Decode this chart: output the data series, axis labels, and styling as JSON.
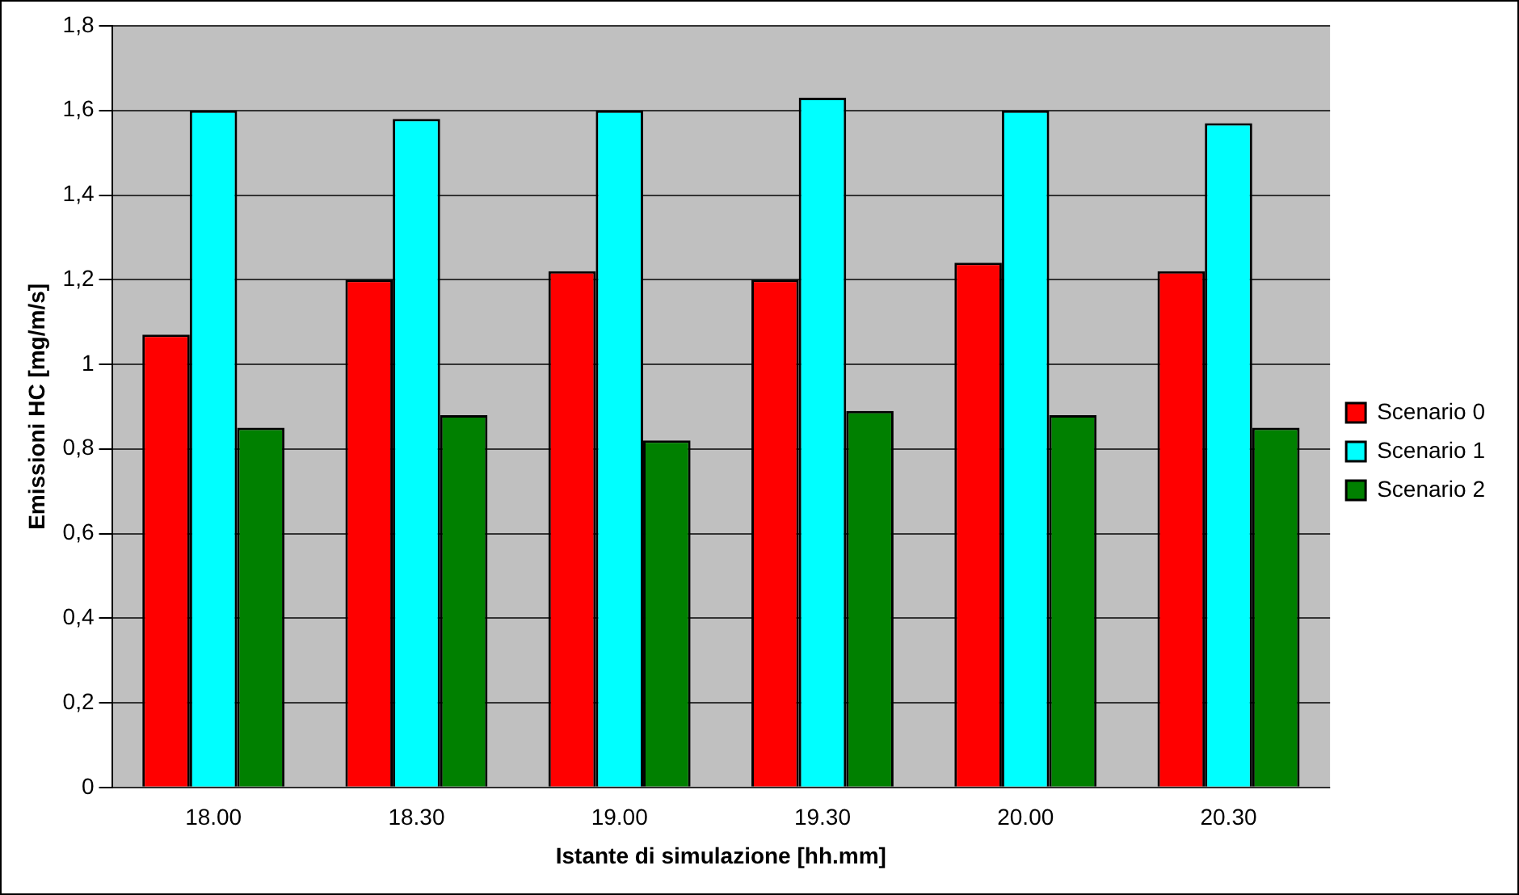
{
  "chart_data": {
    "type": "bar",
    "xlabel": "Istante di simulazione [hh.mm]",
    "ylabel": "Emissioni HC [mg/m/s]",
    "categories": [
      "18.00",
      "18.30",
      "19.00",
      "19.30",
      "20.00",
      "20.30"
    ],
    "series": [
      {
        "name": "Scenario 0",
        "color": "#ff0000",
        "values": [
          1.07,
          1.2,
          1.22,
          1.2,
          1.24,
          1.22
        ]
      },
      {
        "name": "Scenario 1",
        "color": "#00ffff",
        "values": [
          1.6,
          1.58,
          1.6,
          1.63,
          1.6,
          1.57
        ]
      },
      {
        "name": "Scenario 2",
        "color": "#008000",
        "values": [
          0.85,
          0.88,
          0.82,
          0.89,
          0.88,
          0.85
        ]
      }
    ],
    "ylim": [
      0,
      1.8
    ],
    "yticks": [
      0,
      {
        "value": 0.2,
        "label": "0,2"
      },
      {
        "value": 0.4,
        "label": "0,4"
      },
      {
        "value": 0.6,
        "label": "0,6"
      },
      {
        "value": 0.8,
        "label": "0,8"
      },
      1,
      {
        "value": 1.2,
        "label": "1,2"
      },
      {
        "value": 1.4,
        "label": "1,4"
      },
      {
        "value": 1.6,
        "label": "1,6"
      },
      {
        "value": 1.8,
        "label": "1,8"
      }
    ],
    "grid": "y",
    "legend": "right"
  }
}
